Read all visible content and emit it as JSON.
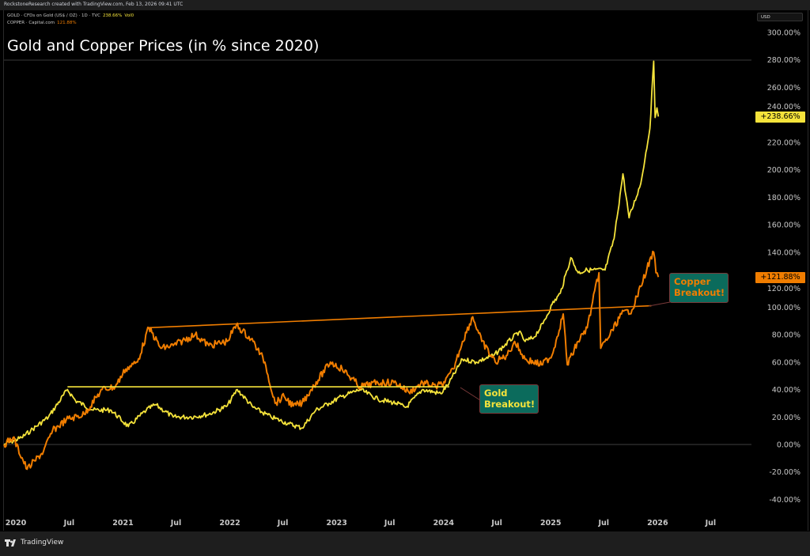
{
  "header": {
    "credit": "RockstoneResearch created with TradingView.com, Feb 13, 2026 09:41 UTC"
  },
  "legend": [
    {
      "name": "GOLD · CFDs on Gold (US$ / OZ) · 1D · TVC",
      "value": "238.66%",
      "extra": "Vol0",
      "color": "#f5e33b"
    },
    {
      "name": "COPPER · Capital.com",
      "value": "121.88%",
      "color": "#f07d00"
    }
  ],
  "title": "Gold and Copper Prices (in % since 2020)",
  "currency": "USD",
  "footer": {
    "brand": "TradingView"
  },
  "annotations": {
    "gold": {
      "line1": "Gold",
      "line2": "Breakout!"
    },
    "copper": {
      "line1": "Copper",
      "line2": "Breakout!"
    }
  },
  "price_labels": {
    "gold": "+238.66%",
    "copper": "+121.88%"
  },
  "chart_data": {
    "type": "line",
    "title": "Gold and Copper Prices (in % since 2020)",
    "y_unit": "%",
    "ylim": [
      -45,
      305
    ],
    "xlim": [
      "2020-01-01",
      "2026-10-01"
    ],
    "grid": false,
    "y_ticks": [
      "300.00%",
      "280.00%",
      "260.00%",
      "240.00%",
      "220.00%",
      "200.00%",
      "180.00%",
      "160.00%",
      "140.00%",
      "120.00%",
      "100.00%",
      "80.00%",
      "60.00%",
      "40.00%",
      "20.00%",
      "0.00%",
      "-20.00%",
      "-40.00%"
    ],
    "y_tick_values": [
      300,
      280,
      260,
      240,
      220,
      200,
      180,
      160,
      140,
      120,
      100,
      80,
      60,
      40,
      20,
      0,
      -20,
      -40
    ],
    "x_ticks": [
      {
        "label": "2020",
        "date": "2020-01-01"
      },
      {
        "label": "Jul",
        "date": "2020-07-01"
      },
      {
        "label": "2021",
        "date": "2021-01-01"
      },
      {
        "label": "Jul",
        "date": "2021-07-01"
      },
      {
        "label": "2022",
        "date": "2022-01-01"
      },
      {
        "label": "Jul",
        "date": "2022-07-01"
      },
      {
        "label": "2023",
        "date": "2023-01-01"
      },
      {
        "label": "Jul",
        "date": "2023-07-01"
      },
      {
        "label": "2024",
        "date": "2024-01-01"
      },
      {
        "label": "Jul",
        "date": "2024-07-01"
      },
      {
        "label": "2025",
        "date": "2025-01-01"
      },
      {
        "label": "Jul",
        "date": "2025-07-01"
      },
      {
        "label": "2026",
        "date": "2026-01-01"
      },
      {
        "label": "Jul",
        "date": "2026-07-01"
      }
    ],
    "series": [
      {
        "name": "GOLD",
        "color": "#f5e33b",
        "points": [
          [
            "2020-01-01",
            0
          ],
          [
            "2020-03-01",
            5
          ],
          [
            "2020-04-01",
            10
          ],
          [
            "2020-06-01",
            20
          ],
          [
            "2020-08-05",
            40
          ],
          [
            "2020-09-01",
            32
          ],
          [
            "2020-11-01",
            25
          ],
          [
            "2021-01-01",
            25
          ],
          [
            "2021-03-01",
            13
          ],
          [
            "2021-05-01",
            25
          ],
          [
            "2021-06-01",
            29
          ],
          [
            "2021-08-01",
            20
          ],
          [
            "2021-10-01",
            20
          ],
          [
            "2021-12-01",
            22
          ],
          [
            "2022-02-01",
            28
          ],
          [
            "2022-03-08",
            40
          ],
          [
            "2022-05-01",
            27
          ],
          [
            "2022-07-01",
            20
          ],
          [
            "2022-09-01",
            15
          ],
          [
            "2022-10-15",
            12
          ],
          [
            "2022-12-01",
            25
          ],
          [
            "2023-01-15",
            30
          ],
          [
            "2023-03-01",
            35
          ],
          [
            "2023-05-01",
            40
          ],
          [
            "2023-07-01",
            33
          ],
          [
            "2023-09-01",
            30
          ],
          [
            "2023-10-05",
            27
          ],
          [
            "2023-12-01",
            40
          ],
          [
            "2024-02-01",
            37
          ],
          [
            "2024-03-01",
            45
          ],
          [
            "2024-04-15",
            62
          ],
          [
            "2024-06-01",
            60
          ],
          [
            "2024-08-01",
            65
          ],
          [
            "2024-10-25",
            82
          ],
          [
            "2024-11-15",
            75
          ],
          [
            "2024-12-15",
            78
          ],
          [
            "2025-01-15",
            88
          ],
          [
            "2025-02-15",
            102
          ],
          [
            "2025-03-15",
            110
          ],
          [
            "2025-04-20",
            136
          ],
          [
            "2025-05-15",
            125
          ],
          [
            "2025-06-15",
            127
          ],
          [
            "2025-08-15",
            127
          ],
          [
            "2025-09-15",
            150
          ],
          [
            "2025-10-15",
            197
          ],
          [
            "2025-11-05",
            165
          ],
          [
            "2025-12-15",
            190
          ],
          [
            "2026-01-15",
            230
          ],
          [
            "2026-01-28",
            279
          ],
          [
            "2026-02-02",
            238
          ],
          [
            "2026-02-08",
            245
          ],
          [
            "2026-02-13",
            238.66
          ]
        ]
      },
      {
        "name": "COPPER",
        "color": "#f07d00",
        "points": [
          [
            "2020-01-01",
            0
          ],
          [
            "2020-02-01",
            5
          ],
          [
            "2020-03-20",
            -18
          ],
          [
            "2020-04-15",
            -12
          ],
          [
            "2020-05-15",
            -5
          ],
          [
            "2020-06-15",
            10
          ],
          [
            "2020-08-01",
            18
          ],
          [
            "2020-10-01",
            22
          ],
          [
            "2020-12-01",
            40
          ],
          [
            "2021-01-15",
            42
          ],
          [
            "2021-02-20",
            55
          ],
          [
            "2021-04-01",
            60
          ],
          [
            "2021-05-10",
            85
          ],
          [
            "2021-06-20",
            70
          ],
          [
            "2021-08-01",
            72
          ],
          [
            "2021-10-15",
            80
          ],
          [
            "2021-12-01",
            72
          ],
          [
            "2022-02-01",
            75
          ],
          [
            "2022-03-05",
            87
          ],
          [
            "2022-05-01",
            75
          ],
          [
            "2022-06-10",
            60
          ],
          [
            "2022-07-15",
            30
          ],
          [
            "2022-08-15",
            35
          ],
          [
            "2022-09-15",
            28
          ],
          [
            "2022-10-15",
            30
          ],
          [
            "2022-11-15",
            40
          ],
          [
            "2023-01-20",
            60
          ],
          [
            "2023-03-01",
            55
          ],
          [
            "2023-05-01",
            42
          ],
          [
            "2023-07-01",
            45
          ],
          [
            "2023-09-01",
            45
          ],
          [
            "2023-10-15",
            38
          ],
          [
            "2023-12-01",
            45
          ],
          [
            "2024-01-15",
            42
          ],
          [
            "2024-02-15",
            45
          ],
          [
            "2024-03-15",
            55
          ],
          [
            "2024-04-15",
            75
          ],
          [
            "2024-05-20",
            93
          ],
          [
            "2024-06-20",
            75
          ],
          [
            "2024-08-05",
            60
          ],
          [
            "2024-09-15",
            65
          ],
          [
            "2024-10-10",
            75
          ],
          [
            "2024-11-15",
            62
          ],
          [
            "2025-01-10",
            58
          ],
          [
            "2025-02-15",
            65
          ],
          [
            "2025-03-25",
            95
          ],
          [
            "2025-04-08",
            58
          ],
          [
            "2025-05-15",
            75
          ],
          [
            "2025-06-15",
            85
          ],
          [
            "2025-07-25",
            125
          ],
          [
            "2025-07-31",
            70
          ],
          [
            "2025-09-01",
            80
          ],
          [
            "2025-10-10",
            95
          ],
          [
            "2025-11-15",
            98
          ],
          [
            "2025-12-15",
            115
          ],
          [
            "2026-01-05",
            128
          ],
          [
            "2026-01-28",
            140
          ],
          [
            "2026-02-05",
            125
          ],
          [
            "2026-02-13",
            121.88
          ]
        ]
      }
    ],
    "trend_lines": [
      {
        "name": "gold-resistance",
        "color": "#f5e33b",
        "from": [
          "2020-08-05",
          42
        ],
        "to": [
          "2024-03-01",
          42
        ]
      },
      {
        "name": "copper-resistance",
        "color": "#f07d00",
        "from": [
          "2021-05-10",
          85
        ],
        "to": [
          "2026-01-20",
          101
        ]
      }
    ]
  }
}
